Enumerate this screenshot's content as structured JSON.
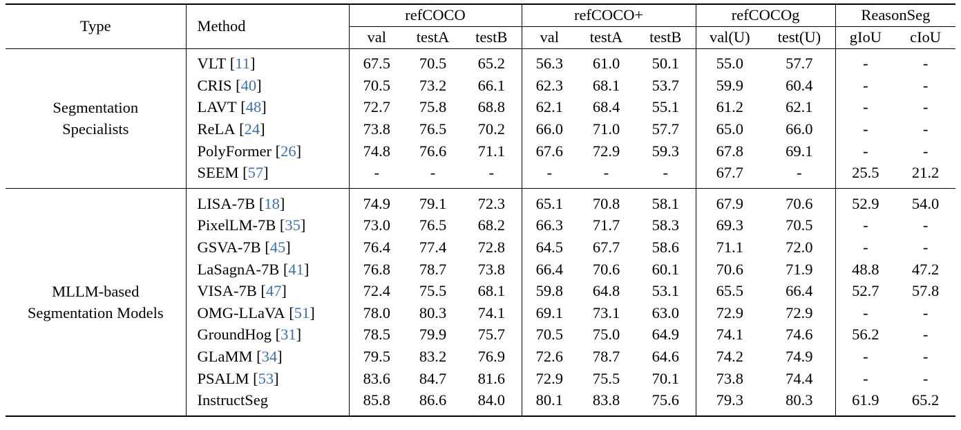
{
  "header": {
    "type": "Type",
    "method": "Method",
    "groups": [
      {
        "name": "refCOCO",
        "cols": [
          "val",
          "testA",
          "testB"
        ]
      },
      {
        "name": "refCOCO+",
        "cols": [
          "val",
          "testA",
          "testB"
        ]
      },
      {
        "name": "refCOCOg",
        "cols": [
          "val(U)",
          "test(U)"
        ]
      },
      {
        "name": "ReasonSeg",
        "cols": [
          "gIoU",
          "cIoU"
        ]
      }
    ]
  },
  "sections": [
    {
      "type_lines": [
        "Segmentation",
        "Specialists"
      ],
      "rows": [
        {
          "method": "VLT",
          "cite": "11",
          "values": [
            "67.5",
            "70.5",
            "65.2",
            "56.3",
            "61.0",
            "50.1",
            "55.0",
            "57.7",
            "-",
            "-"
          ]
        },
        {
          "method": "CRIS",
          "cite": "40",
          "values": [
            "70.5",
            "73.2",
            "66.1",
            "62.3",
            "68.1",
            "53.7",
            "59.9",
            "60.4",
            "-",
            "-"
          ]
        },
        {
          "method": "LAVT",
          "cite": "48",
          "values": [
            "72.7",
            "75.8",
            "68.8",
            "62.1",
            "68.4",
            "55.1",
            "61.2",
            "62.1",
            "-",
            "-"
          ]
        },
        {
          "method": "ReLA",
          "cite": "24",
          "values": [
            "73.8",
            "76.5",
            "70.2",
            "66.0",
            "71.0",
            "57.7",
            "65.0",
            "66.0",
            "-",
            "-"
          ]
        },
        {
          "method": "PolyFormer",
          "cite": "26",
          "values": [
            "74.8",
            "76.6",
            "71.1",
            "67.6",
            "72.9",
            "59.3",
            "67.8",
            "69.1",
            "-",
            "-"
          ]
        },
        {
          "method": "SEEM",
          "cite": "57",
          "values": [
            "-",
            "-",
            "-",
            "-",
            "-",
            "-",
            "67.7",
            "-",
            "25.5",
            "21.2"
          ]
        }
      ]
    },
    {
      "type_lines": [
        "MLLM-based",
        "Segmentation Models"
      ],
      "rows": [
        {
          "method": "LISA-7B",
          "cite": "18",
          "values": [
            "74.9",
            "79.1",
            "72.3",
            "65.1",
            "70.8",
            "58.1",
            "67.9",
            "70.6",
            "52.9",
            "54.0"
          ]
        },
        {
          "method": "PixelLM-7B",
          "cite": "35",
          "values": [
            "73.0",
            "76.5",
            "68.2",
            "66.3",
            "71.7",
            "58.3",
            "69.3",
            "70.5",
            "-",
            "-"
          ]
        },
        {
          "method": "GSVA-7B",
          "cite": "45",
          "values": [
            "76.4",
            "77.4",
            "72.8",
            "64.5",
            "67.7",
            "58.6",
            "71.1",
            "72.0",
            "-",
            "-"
          ]
        },
        {
          "method": "LaSagnA-7B",
          "cite": "41",
          "values": [
            "76.8",
            "78.7",
            "73.8",
            "66.4",
            "70.6",
            "60.1",
            "70.6",
            "71.9",
            "48.8",
            "47.2"
          ]
        },
        {
          "method": "VISA-7B",
          "cite": "47",
          "values": [
            "72.4",
            "75.5",
            "68.1",
            "59.8",
            "64.8",
            "53.1",
            "65.5",
            "66.4",
            "52.7",
            "57.8"
          ]
        },
        {
          "method": "OMG-LLaVA",
          "cite": "51",
          "values": [
            "78.0",
            "80.3",
            "74.1",
            "69.1",
            "73.1",
            "63.0",
            "72.9",
            "72.9",
            "-",
            "-"
          ]
        },
        {
          "method": "GroundHog",
          "cite": "31",
          "values": [
            "78.5",
            "79.9",
            "75.7",
            "70.5",
            "75.0",
            "64.9",
            "74.1",
            "74.6",
            "56.2",
            "-"
          ]
        },
        {
          "method": "GLaMM",
          "cite": "34",
          "values": [
            "79.5",
            "83.2",
            "76.9",
            "72.6",
            "78.7",
            "64.6",
            "74.2",
            "74.9",
            "-",
            "-"
          ]
        },
        {
          "method": "PSALM",
          "cite": "53",
          "values": [
            "83.6",
            "84.7",
            "81.6",
            "72.9",
            "75.5",
            "70.1",
            "73.8",
            "74.4",
            "-",
            "-"
          ]
        },
        {
          "method": "InstructSeg",
          "cite": "",
          "bold": true,
          "values": [
            "85.8",
            "86.6",
            "84.0",
            "80.1",
            "83.8",
            "75.6",
            "79.3",
            "80.3",
            "61.9",
            "65.2"
          ]
        }
      ]
    }
  ]
}
